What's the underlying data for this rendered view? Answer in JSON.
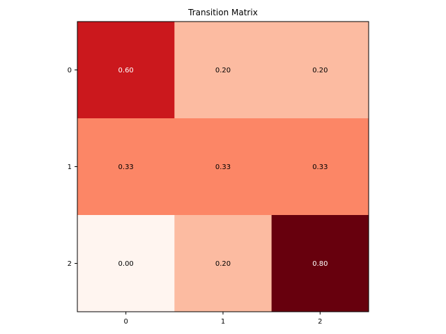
{
  "chart_data": {
    "type": "heatmap",
    "title": "Transition Matrix",
    "xlabel": "",
    "ylabel": "",
    "x_categories": [
      "0",
      "1",
      "2"
    ],
    "y_categories": [
      "0",
      "1",
      "2"
    ],
    "values": [
      [
        0.6,
        0.2,
        0.2
      ],
      [
        0.33,
        0.33,
        0.33
      ],
      [
        0.0,
        0.2,
        0.8
      ]
    ],
    "value_labels": [
      [
        "0.60",
        "0.20",
        "0.20"
      ],
      [
        "0.33",
        "0.33",
        "0.33"
      ],
      [
        "0.00",
        "0.20",
        "0.80"
      ]
    ],
    "colormap": "Reds",
    "vmin": 0.0,
    "vmax": 0.8,
    "grid": false,
    "legend": "none",
    "colors": {
      "low_cell": "#fff5f0",
      "high_cell": "#67000d",
      "label_on_light": "#000000",
      "label_on_dark": "#ffffff"
    }
  }
}
